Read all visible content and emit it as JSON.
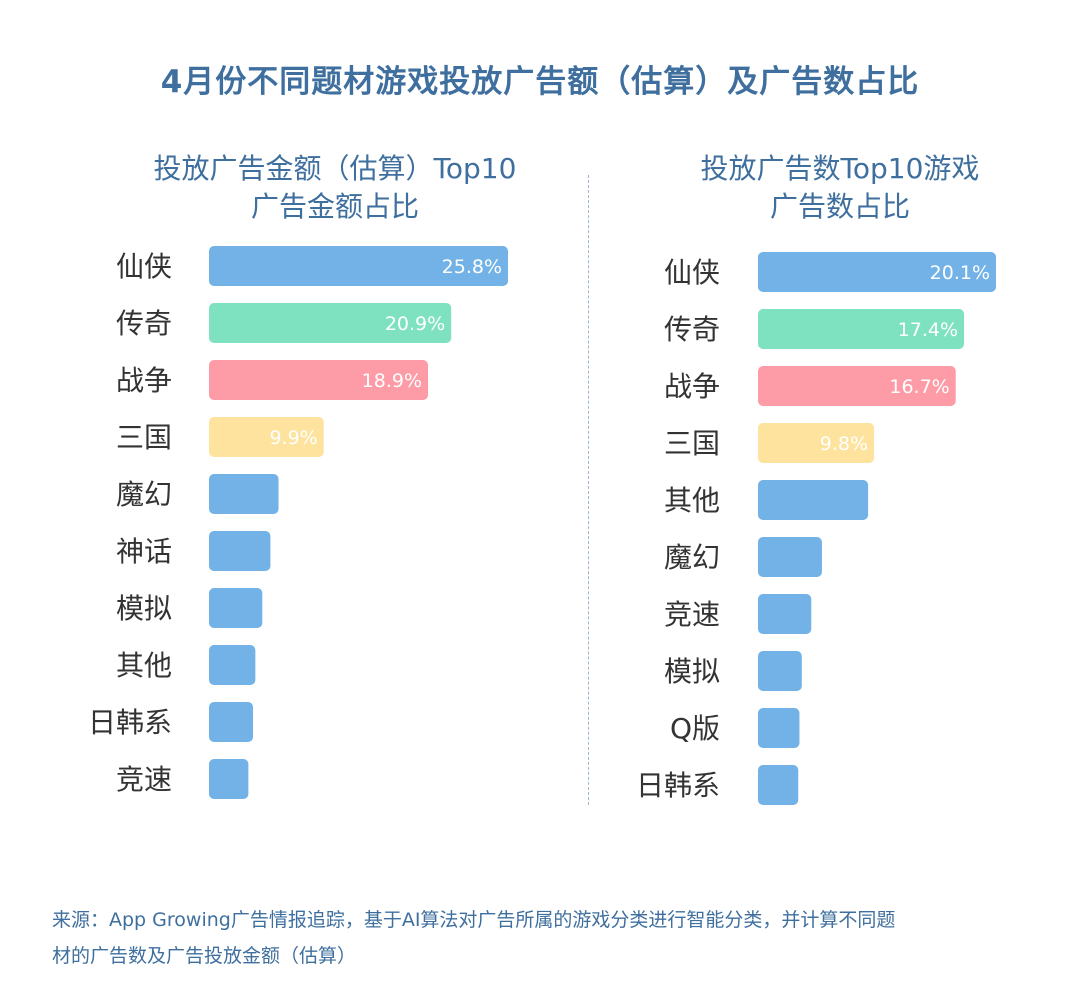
{
  "title": "4月份不同题材游戏投放广告额（估算）及广告数占比",
  "chart_data": [
    {
      "type": "bar",
      "orientation": "horizontal",
      "title_lines": [
        "投放广告金额（估算）Top10",
        "广告金额占比"
      ],
      "categories": [
        "仙侠",
        "传奇",
        "战争",
        "三国",
        "魔幻",
        "神话",
        "模拟",
        "其他",
        "日韩系",
        "竞速"
      ],
      "values": [
        25.8,
        20.9,
        18.9,
        9.9,
        6.0,
        5.3,
        4.6,
        4.0,
        3.8,
        3.4
      ],
      "labels": [
        "25.8%",
        "20.9%",
        "18.9%",
        "9.9%",
        "",
        "",
        "",
        "",
        "",
        ""
      ],
      "colors": [
        "#72b2e6",
        "#7ee2c0",
        "#fd9ba6",
        "#fde39d",
        "#72b2e6",
        "#72b2e6",
        "#72b2e6",
        "#72b2e6",
        "#72b2e6",
        "#72b2e6"
      ],
      "xlim": [
        0,
        25.8
      ]
    },
    {
      "type": "bar",
      "orientation": "horizontal",
      "title_lines": [
        "投放广告数Top10游戏",
        "广告数占比"
      ],
      "categories": [
        "仙侠",
        "传奇",
        "战争",
        "三国",
        "其他",
        "魔幻",
        "竞速",
        "模拟",
        "Q版",
        "日韩系"
      ],
      "values": [
        20.1,
        17.4,
        16.7,
        9.8,
        9.3,
        5.4,
        4.5,
        3.7,
        3.5,
        3.4
      ],
      "labels": [
        "20.1%",
        "17.4%",
        "16.7%",
        "9.8%",
        "",
        "",
        "",
        "",
        "",
        ""
      ],
      "colors": [
        "#72b2e6",
        "#7ee2c0",
        "#fd9ba6",
        "#fde39d",
        "#72b2e6",
        "#72b2e6",
        "#72b2e6",
        "#72b2e6",
        "#72b2e6",
        "#72b2e6"
      ],
      "xlim": [
        0,
        20.1
      ]
    }
  ],
  "footer": {
    "line1": "来源：App Growing广告情报追踪，基于AI算法对广告所属的游戏分类进行智能分类，并计算不同题",
    "line2": "材的广告数及广告投放金额（估算）"
  }
}
